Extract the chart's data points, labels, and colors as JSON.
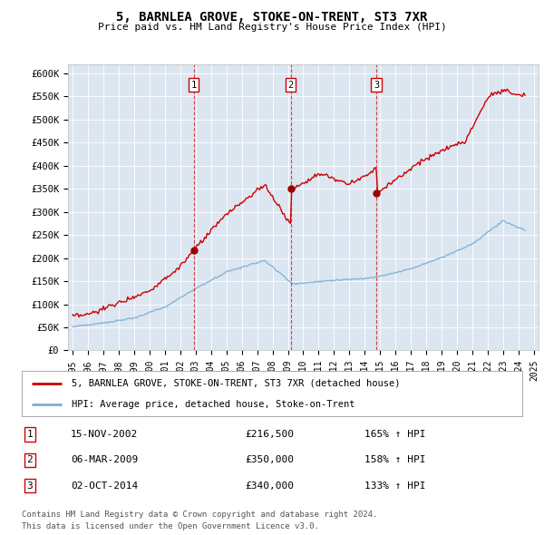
{
  "title": "5, BARNLEA GROVE, STOKE-ON-TRENT, ST3 7XR",
  "subtitle": "Price paid vs. HM Land Registry's House Price Index (HPI)",
  "ylim": [
    0,
    620000
  ],
  "yticks": [
    0,
    50000,
    100000,
    150000,
    200000,
    250000,
    300000,
    350000,
    400000,
    450000,
    500000,
    550000,
    600000
  ],
  "ytick_labels": [
    "£0",
    "£50K",
    "£100K",
    "£150K",
    "£200K",
    "£250K",
    "£300K",
    "£350K",
    "£400K",
    "£450K",
    "£500K",
    "£550K",
    "£600K"
  ],
  "xlim_start": 1994.7,
  "xlim_end": 2025.3,
  "background_color": "#dce6f1",
  "red_line_color": "#cc0000",
  "blue_line_color": "#7bafd4",
  "dashed_line_color": "#cc0000",
  "sales": [
    {
      "num": 1,
      "year": 2002.88,
      "price": 216500,
      "label": "15-NOV-2002",
      "hpi_text": "165% ↑ HPI"
    },
    {
      "num": 2,
      "year": 2009.18,
      "price": 350000,
      "label": "06-MAR-2009",
      "hpi_text": "158% ↑ HPI"
    },
    {
      "num": 3,
      "year": 2014.75,
      "price": 340000,
      "label": "02-OCT-2014",
      "hpi_text": "133% ↑ HPI"
    }
  ],
  "legend_line1": "5, BARNLEA GROVE, STOKE-ON-TRENT, ST3 7XR (detached house)",
  "legend_line2": "HPI: Average price, detached house, Stoke-on-Trent",
  "footer_line1": "Contains HM Land Registry data © Crown copyright and database right 2024.",
  "footer_line2": "This data is licensed under the Open Government Licence v3.0."
}
